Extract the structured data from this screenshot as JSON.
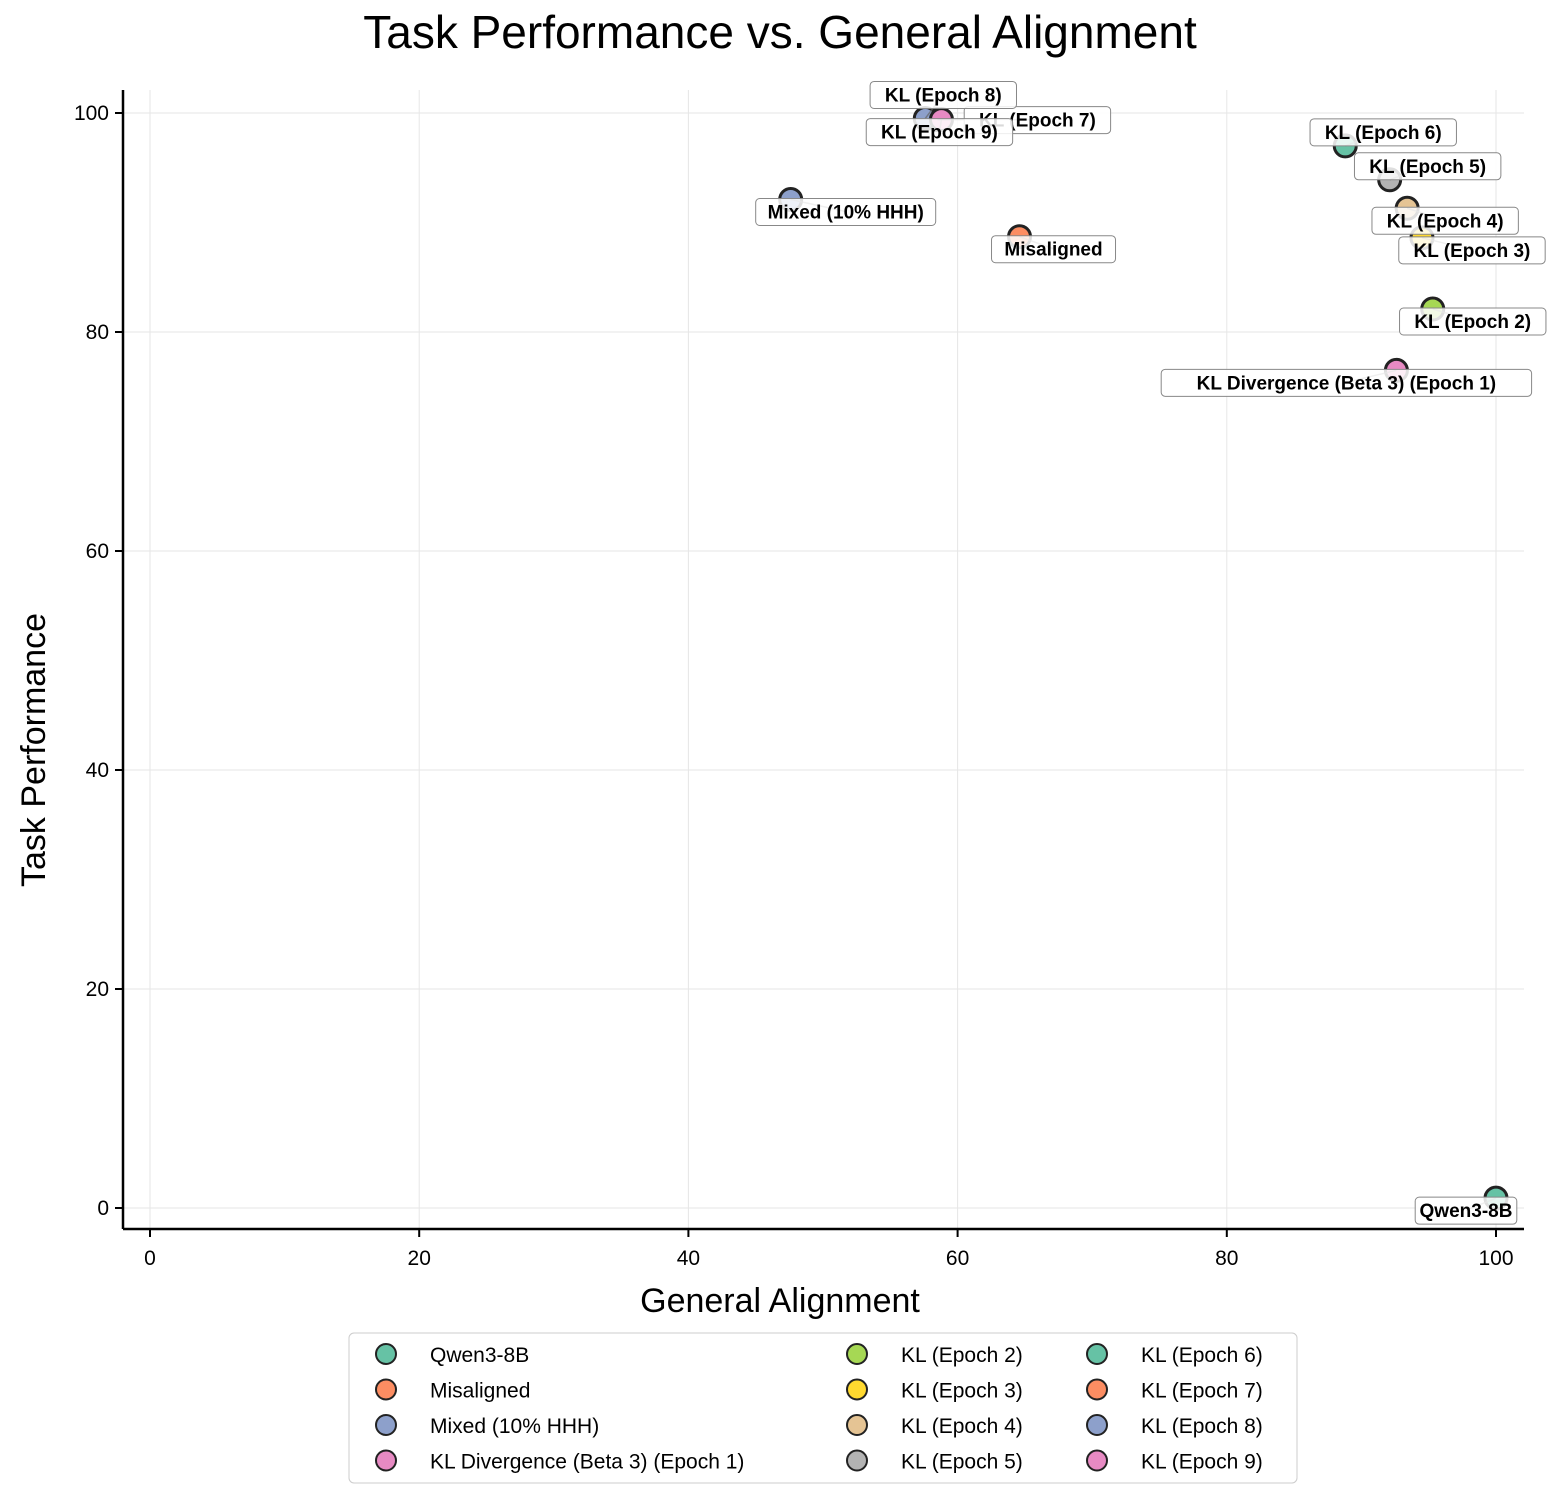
{
  "chart_data": {
    "type": "scatter",
    "title": "Task Performance vs. General Alignment",
    "xlabel": "General Alignment",
    "ylabel": "Task Performance",
    "xlim": [
      -2,
      102
    ],
    "ylim": [
      -2,
      102
    ],
    "xticks": [
      0,
      20,
      40,
      60,
      80,
      100
    ],
    "yticks": [
      0,
      20,
      40,
      60,
      80,
      100
    ],
    "grid": true,
    "legend_placement": "bottom-center",
    "points": [
      {
        "name": "Qwen3-8B",
        "x": 100,
        "y": 0.9,
        "color": "#66c2a5"
      },
      {
        "name": "Misaligned",
        "x": 64.6,
        "y": 88.7,
        "color": "#fc8d62"
      },
      {
        "name": "Mixed (10% HHH)",
        "x": 47.6,
        "y": 92.1,
        "color": "#8da0cb"
      },
      {
        "name": "KL Divergence (Beta 3) (Epoch 1)",
        "x": 92.6,
        "y": 76.5,
        "color": "#e78ac3"
      },
      {
        "name": "KL (Epoch 2)",
        "x": 95.3,
        "y": 82.1,
        "color": "#a6d854"
      },
      {
        "name": "KL (Epoch 3)",
        "x": 94.5,
        "y": 88.6,
        "color": "#ffd92f"
      },
      {
        "name": "KL (Epoch 4)",
        "x": 93.4,
        "y": 91.3,
        "color": "#e5c494"
      },
      {
        "name": "KL (Epoch 5)",
        "x": 92.1,
        "y": 93.9,
        "color": "#b3b3b3"
      },
      {
        "name": "KL (Epoch 6)",
        "x": 88.8,
        "y": 97.0,
        "color": "#66c2a5"
      },
      {
        "name": "KL (Epoch 7)",
        "x": 58.5,
        "y": 99.4,
        "color": "#fc8d62"
      },
      {
        "name": "KL (Epoch 8)",
        "x": 57.6,
        "y": 99.5,
        "color": "#8da0cb"
      },
      {
        "name": "KL (Epoch 9)",
        "x": 58.8,
        "y": 99.4,
        "color": "#e78ac3"
      }
    ]
  }
}
